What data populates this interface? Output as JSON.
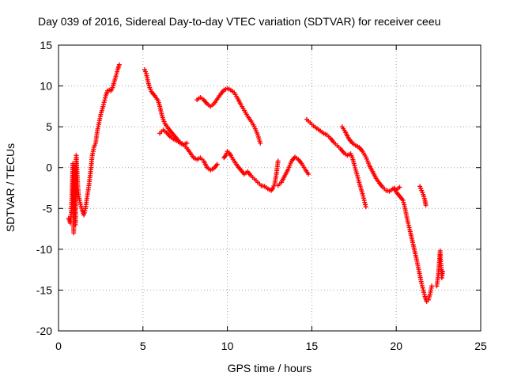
{
  "chart_data": {
    "type": "scatter",
    "title": "Day 039 of 2016, Sidereal Day-to-day VTEC variation (SDTVAR) for receiver ceeu",
    "xlabel": "GPS time / hours",
    "ylabel": "SDTVAR / TECUs",
    "xlim": [
      0,
      25
    ],
    "ylim": [
      -20,
      15
    ],
    "xticks": [
      0,
      5,
      10,
      15,
      20,
      25
    ],
    "yticks": [
      -20,
      -15,
      -10,
      -5,
      0,
      5,
      10,
      15
    ],
    "grid": true,
    "marker": "+",
    "colors": {
      "series": "#ff0000",
      "grid": "#a0a0a0",
      "axes": "#000000"
    },
    "series": [
      {
        "points": [
          [
            0.6,
            -6.2
          ],
          [
            0.7,
            -6.8
          ],
          [
            0.75,
            -5.5
          ],
          [
            0.8,
            -3.0
          ],
          [
            0.85,
            0.5
          ],
          [
            0.9,
            -8.0
          ],
          [
            0.95,
            0.2
          ],
          [
            1.0,
            -7.0
          ],
          [
            1.05,
            1.5
          ],
          [
            1.1,
            -0.5
          ],
          [
            1.15,
            -2.5
          ],
          [
            1.2,
            -3.5
          ],
          [
            1.3,
            -4.5
          ],
          [
            1.4,
            -5.2
          ],
          [
            1.5,
            -5.8
          ],
          [
            1.6,
            -5.0
          ],
          [
            1.7,
            -3.5
          ],
          [
            1.8,
            -2.2
          ],
          [
            1.9,
            -0.5
          ],
          [
            2.0,
            1.5
          ],
          [
            2.1,
            2.5
          ],
          [
            2.2,
            3.0
          ],
          [
            2.3,
            4.5
          ],
          [
            2.4,
            5.5
          ],
          [
            2.5,
            6.5
          ],
          [
            2.6,
            7.2
          ],
          [
            2.7,
            8.0
          ],
          [
            2.8,
            8.8
          ],
          [
            2.9,
            9.4
          ],
          [
            3.0,
            9.5
          ],
          [
            3.1,
            9.4
          ],
          [
            3.2,
            9.8
          ],
          [
            3.3,
            10.5
          ],
          [
            3.4,
            11.2
          ],
          [
            3.5,
            12.0
          ],
          [
            3.6,
            12.6
          ]
        ]
      },
      {
        "points": [
          [
            5.1,
            12.0
          ],
          [
            5.2,
            11.5
          ],
          [
            5.3,
            10.5
          ],
          [
            5.4,
            9.8
          ],
          [
            5.5,
            9.3
          ],
          [
            5.7,
            8.8
          ],
          [
            5.9,
            8.2
          ],
          [
            6.0,
            7.5
          ],
          [
            6.1,
            6.6
          ],
          [
            6.2,
            5.9
          ],
          [
            6.3,
            5.4
          ],
          [
            6.5,
            4.8
          ],
          [
            6.7,
            4.3
          ],
          [
            6.9,
            3.8
          ],
          [
            7.1,
            3.3
          ],
          [
            7.4,
            2.8
          ],
          [
            7.6,
            2.4
          ],
          [
            7.8,
            1.8
          ],
          [
            8.0,
            1.2
          ],
          [
            8.2,
            1.0
          ],
          [
            8.4,
            1.2
          ],
          [
            8.6,
            0.8
          ],
          [
            8.8,
            0.0
          ],
          [
            9.0,
            -0.3
          ],
          [
            9.2,
            -0.1
          ],
          [
            9.4,
            0.4
          ]
        ]
      },
      {
        "points": [
          [
            6.0,
            4.2
          ],
          [
            6.2,
            4.6
          ],
          [
            6.4,
            4.3
          ],
          [
            6.6,
            3.8
          ],
          [
            6.8,
            3.5
          ],
          [
            7.0,
            3.3
          ],
          [
            7.2,
            3.0
          ],
          [
            7.4,
            2.8
          ],
          [
            7.6,
            3.0
          ]
        ]
      },
      {
        "points": [
          [
            8.2,
            8.3
          ],
          [
            8.4,
            8.6
          ],
          [
            8.6,
            8.3
          ],
          [
            8.8,
            7.8
          ],
          [
            9.0,
            7.5
          ],
          [
            9.2,
            7.8
          ],
          [
            9.4,
            8.4
          ],
          [
            9.6,
            9.0
          ],
          [
            9.8,
            9.5
          ],
          [
            10.0,
            9.7
          ],
          [
            10.2,
            9.5
          ],
          [
            10.4,
            9.2
          ],
          [
            10.6,
            8.5
          ],
          [
            10.8,
            7.7
          ],
          [
            11.0,
            7.0
          ],
          [
            11.2,
            6.3
          ],
          [
            11.4,
            5.7
          ],
          [
            11.6,
            5.0
          ],
          [
            11.8,
            4.0
          ],
          [
            11.95,
            3.0
          ]
        ]
      },
      {
        "points": [
          [
            9.8,
            1.2
          ],
          [
            9.9,
            1.5
          ],
          [
            10.0,
            2.0
          ],
          [
            10.1,
            1.8
          ],
          [
            10.2,
            1.5
          ],
          [
            10.4,
            0.8
          ],
          [
            10.6,
            0.2
          ],
          [
            10.8,
            -0.3
          ],
          [
            11.0,
            -0.8
          ],
          [
            11.2,
            -0.5
          ],
          [
            11.4,
            -1.0
          ],
          [
            11.6,
            -1.4
          ],
          [
            11.8,
            -1.8
          ],
          [
            12.0,
            -2.2
          ],
          [
            12.2,
            -2.3
          ],
          [
            12.4,
            -2.6
          ],
          [
            12.6,
            -2.8
          ],
          [
            12.7,
            -2.5
          ],
          [
            12.8,
            -2.0
          ],
          [
            12.9,
            -0.8
          ],
          [
            13.0,
            0.8
          ]
        ]
      },
      {
        "points": [
          [
            13.0,
            -2.2
          ],
          [
            13.2,
            -1.8
          ],
          [
            13.4,
            -1.0
          ],
          [
            13.6,
            -0.2
          ],
          [
            13.8,
            0.8
          ],
          [
            14.0,
            1.3
          ],
          [
            14.2,
            1.0
          ],
          [
            14.4,
            0.5
          ],
          [
            14.6,
            -0.2
          ],
          [
            14.8,
            -0.8
          ]
        ]
      },
      {
        "points": [
          [
            14.7,
            5.9
          ],
          [
            14.9,
            5.5
          ],
          [
            15.1,
            5.1
          ],
          [
            15.3,
            4.8
          ],
          [
            15.5,
            4.5
          ],
          [
            15.7,
            4.2
          ],
          [
            15.9,
            4.0
          ],
          [
            16.1,
            3.6
          ],
          [
            16.3,
            3.1
          ],
          [
            16.5,
            2.7
          ],
          [
            16.7,
            2.3
          ],
          [
            16.9,
            1.8
          ],
          [
            17.1,
            1.5
          ],
          [
            17.3,
            1.7
          ],
          [
            17.4,
            1.2
          ],
          [
            17.5,
            0.5
          ],
          [
            17.6,
            -0.3
          ],
          [
            17.7,
            -1.0
          ],
          [
            17.8,
            -1.8
          ],
          [
            17.9,
            -2.5
          ],
          [
            18.0,
            -3.2
          ],
          [
            18.1,
            -4.0
          ],
          [
            18.2,
            -4.8
          ]
        ]
      },
      {
        "points": [
          [
            16.8,
            5.0
          ],
          [
            17.0,
            4.3
          ],
          [
            17.2,
            3.5
          ],
          [
            17.4,
            3.0
          ],
          [
            17.6,
            2.7
          ],
          [
            17.8,
            2.5
          ],
          [
            18.0,
            2.0
          ],
          [
            18.2,
            1.3
          ],
          [
            18.4,
            0.3
          ],
          [
            18.6,
            -0.5
          ],
          [
            18.8,
            -1.3
          ],
          [
            19.0,
            -1.9
          ],
          [
            19.2,
            -2.4
          ],
          [
            19.4,
            -2.8
          ],
          [
            19.6,
            -2.9
          ],
          [
            19.8,
            -2.6
          ],
          [
            20.0,
            -2.7
          ],
          [
            20.2,
            -2.4
          ]
        ]
      },
      {
        "points": [
          [
            19.9,
            -2.5
          ],
          [
            20.0,
            -3.0
          ],
          [
            20.2,
            -3.5
          ],
          [
            20.4,
            -4.0
          ],
          [
            20.5,
            -4.8
          ],
          [
            20.6,
            -5.8
          ],
          [
            20.7,
            -6.8
          ],
          [
            20.8,
            -7.6
          ],
          [
            20.9,
            -8.5
          ],
          [
            21.0,
            -9.4
          ],
          [
            21.1,
            -10.3
          ],
          [
            21.2,
            -11.2
          ],
          [
            21.3,
            -12.2
          ],
          [
            21.4,
            -13.2
          ],
          [
            21.5,
            -14.2
          ],
          [
            21.6,
            -15.0
          ],
          [
            21.7,
            -15.8
          ],
          [
            21.8,
            -16.4
          ],
          [
            21.9,
            -16.2
          ],
          [
            22.0,
            -15.5
          ],
          [
            22.1,
            -14.5
          ]
        ]
      },
      {
        "points": [
          [
            21.4,
            -2.3
          ],
          [
            21.5,
            -2.8
          ],
          [
            21.6,
            -3.3
          ],
          [
            21.7,
            -4.0
          ],
          [
            21.75,
            -4.6
          ]
        ]
      },
      {
        "points": [
          [
            22.4,
            -14.5
          ],
          [
            22.5,
            -13.0
          ],
          [
            22.6,
            -10.2
          ],
          [
            22.65,
            -12.0
          ],
          [
            22.7,
            -13.5
          ],
          [
            22.75,
            -12.7
          ]
        ]
      }
    ]
  }
}
